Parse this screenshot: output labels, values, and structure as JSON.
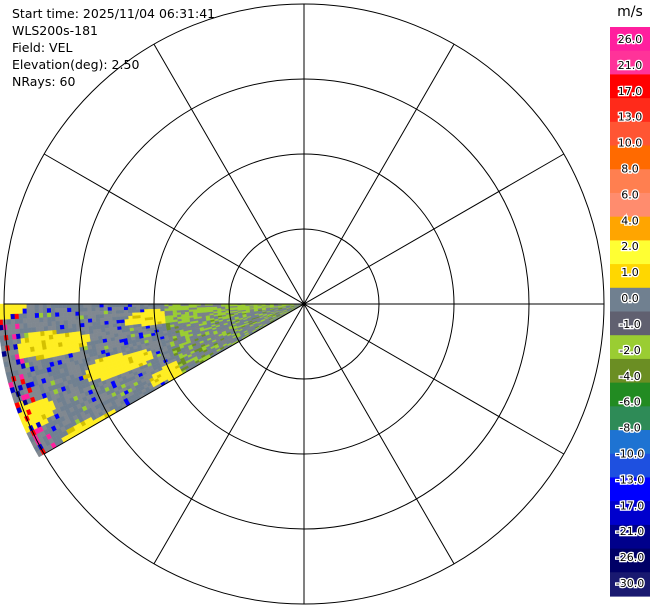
{
  "header": {
    "start_time": "Start time: 2025/11/04 06:31:41",
    "instrument": "WLS200s-181",
    "field": "Field: VEL",
    "elevation": "Elevation(deg): 2.50",
    "nrays": "NRays: 60"
  },
  "chart_data": {
    "type": "heatmap",
    "projection": "polar-ppi",
    "field": "VEL",
    "units": "m/s",
    "range_rings": 4,
    "radial_lines_deg_step": 30,
    "scan_sector_math_deg": [
      180,
      210
    ],
    "colorbar": {
      "label": "m/s",
      "tick_labels": [
        "26.0",
        "21.0",
        "17.0",
        "13.0",
        "10.0",
        "8.0",
        "6.0",
        "4.0",
        "2.0",
        "1.0",
        "0.0",
        "-1.0",
        "-2.0",
        "-4.0",
        "-6.0",
        "-8.0",
        "-10.0",
        "-13.0",
        "-17.0",
        "-21.0",
        "-26.0",
        "-30.0"
      ],
      "colors": [
        "#ff1f9e",
        "#ff3399",
        "#ff0000",
        "#ff2a1a",
        "#ff5533",
        "#ff6a00",
        "#ff7f50",
        "#ff8c6e",
        "#ffa500",
        "#ffff33",
        "#ffd700",
        "#708090",
        "#606070",
        "#9acd32",
        "#6b8e23",
        "#228b22",
        "#2e8b57",
        "#1e73d2",
        "#1e50e0",
        "#0000ff",
        "#0000cd",
        "#00008b",
        "#000066",
        "#191970"
      ]
    }
  }
}
